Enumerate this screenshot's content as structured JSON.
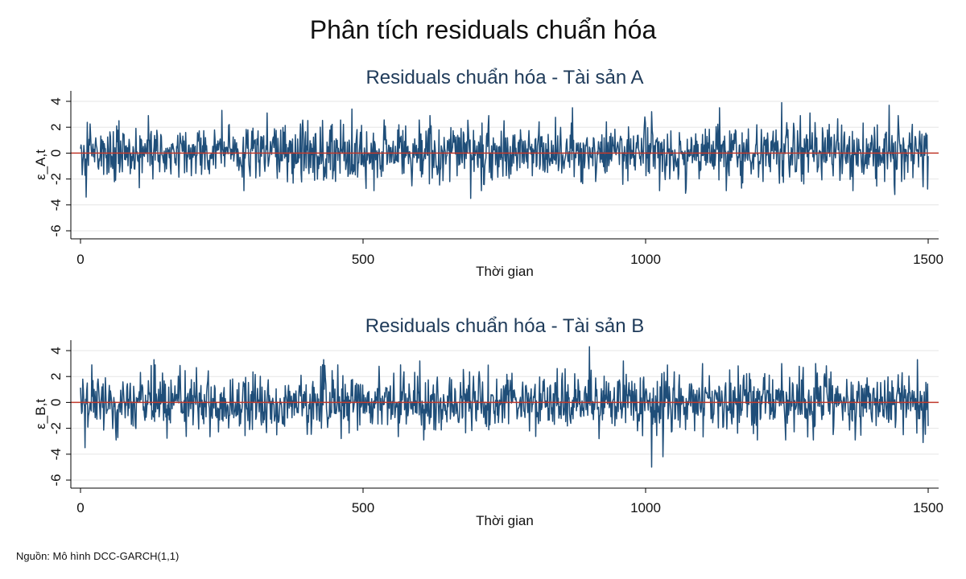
{
  "figure": {
    "title": "Phân tích residuals chuẩn hóa",
    "note": "Nguồn: Mô hình DCC-GARCH(1,1)"
  },
  "colors": {
    "series": "#1f4e79",
    "zero_line": "#c0392b",
    "grid": "#e6e6e6",
    "axis": "#000000"
  },
  "chart_data": [
    {
      "type": "line",
      "title": "Residuals chuẩn hóa - Tài sản A",
      "xlabel": "Thời gian",
      "ylabel": "ε_A,t",
      "xlim": [
        0,
        1500
      ],
      "ylim": [
        -6,
        4
      ],
      "x_ticks": [
        0,
        500,
        1000,
        1500
      ],
      "x_tick_labels": [
        "0",
        "500",
        "1000",
        "1500"
      ],
      "y_ticks": [
        -6,
        -4,
        -2,
        0,
        2,
        4
      ],
      "y_tick_labels": [
        "-6",
        "-4",
        "-2",
        "0",
        "2",
        "4"
      ],
      "grid": true,
      "reference_line": 0,
      "series": [
        {
          "n_points": 1500,
          "amplitude": 1.1,
          "seed": 17,
          "spikes": [
            [
              10,
              -3.4
            ],
            [
              120,
              2.9
            ],
            [
              250,
              3.3
            ],
            [
              330,
              3.1
            ],
            [
              480,
              3.4
            ],
            [
              690,
              -3.5
            ],
            [
              870,
              3.5
            ],
            [
              1010,
              3.2
            ],
            [
              1070,
              -3.1
            ],
            [
              1130,
              3.5
            ],
            [
              1240,
              3.9
            ],
            [
              1290,
              3.1
            ],
            [
              1430,
              3.7
            ],
            [
              1440,
              -3.2
            ],
            [
              1490,
              -2.6
            ]
          ]
        }
      ]
    },
    {
      "type": "line",
      "title": "Residuals chuẩn hóa - Tài sản B",
      "xlabel": "Thời gian",
      "ylabel": "ε_B,t",
      "xlim": [
        0,
        1500
      ],
      "ylim": [
        -6,
        4
      ],
      "x_ticks": [
        0,
        500,
        1000,
        1500
      ],
      "x_tick_labels": [
        "0",
        "500",
        "1000",
        "1500"
      ],
      "y_ticks": [
        -6,
        -4,
        -2,
        0,
        2,
        4
      ],
      "y_tick_labels": [
        "-6",
        "-4",
        "-2",
        "0",
        "2",
        "4"
      ],
      "grid": true,
      "reference_line": 0,
      "series": [
        {
          "n_points": 1500,
          "amplitude": 1.1,
          "seed": 29,
          "spikes": [
            [
              8,
              -3.5
            ],
            [
              20,
              2.9
            ],
            [
              130,
              3.3
            ],
            [
              430,
              3.3
            ],
            [
              600,
              3.2
            ],
            [
              900,
              4.3
            ],
            [
              960,
              3.2
            ],
            [
              1010,
              -5.0
            ],
            [
              1030,
              -4.2
            ],
            [
              1100,
              3.0
            ],
            [
              1240,
              3.0
            ],
            [
              1300,
              3.0
            ],
            [
              1480,
              3.3
            ],
            [
              1490,
              -3.1
            ]
          ]
        }
      ]
    }
  ]
}
